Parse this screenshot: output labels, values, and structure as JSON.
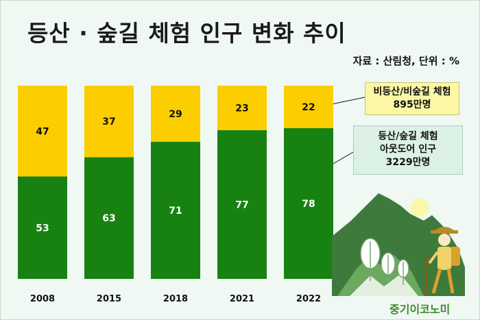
{
  "header": {
    "title": "등산 · 숲길 체험 인구 변화 추이",
    "source": "자료 : 산림청, 단위 : %"
  },
  "callouts": {
    "yellow_line1": "비등산/비숲길 체험",
    "yellow_line2": "895만명",
    "green_line1": "등산/숲길 체험",
    "green_line2": "아웃도어 인구",
    "green_line3": "3229만명"
  },
  "brand": "중기이코노미",
  "colors": {
    "hiking": "#178212",
    "non_hiking": "#fcce00",
    "background": "#f0f8f4"
  },
  "chart_data": {
    "type": "bar",
    "stacked": true,
    "categories": [
      "2008",
      "2015",
      "2018",
      "2021",
      "2022"
    ],
    "series": [
      {
        "values": [
          53,
          63,
          71,
          77,
          78
        ]
      },
      {
        "values": [
          47,
          37,
          29,
          23,
          22
        ]
      }
    ],
    "ylim": [
      0,
      100
    ],
    "grid": false
  }
}
